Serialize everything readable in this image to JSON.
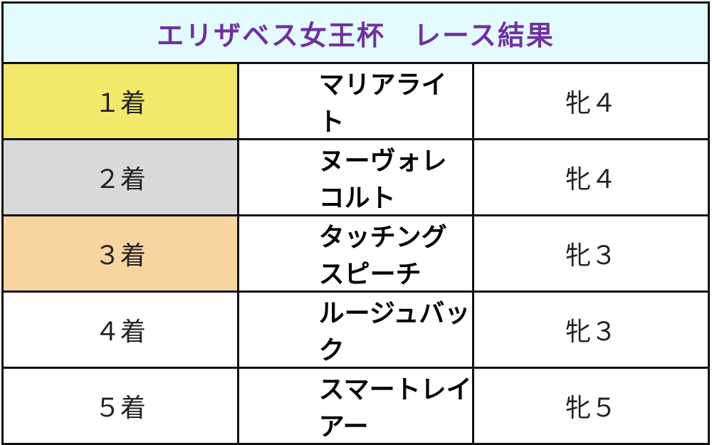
{
  "title": "エリザベス女王杯　レース結果",
  "colors": {
    "title_text": "#7030A0",
    "header_bg": "#E3FAFE",
    "first": "#F2E86A",
    "second": "#D9D9D9",
    "third": "#F8D5A0",
    "other": "#FFFFFF"
  },
  "rows": [
    {
      "rank": "１着",
      "name": "マリアライト",
      "sex_age": "牝４",
      "color": "#F2E86A"
    },
    {
      "rank": "２着",
      "name": "ヌーヴォレコルト",
      "sex_age": "牝４",
      "color": "#D9D9D9"
    },
    {
      "rank": "３着",
      "name": "タッチングスピーチ",
      "sex_age": "牝３",
      "color": "#F8D5A0"
    },
    {
      "rank": "４着",
      "name": "ルージュバック",
      "sex_age": "牝３",
      "color": "#FFFFFF"
    },
    {
      "rank": "５着",
      "name": "スマートレイアー",
      "sex_age": "牝５",
      "color": "#FFFFFF"
    }
  ]
}
